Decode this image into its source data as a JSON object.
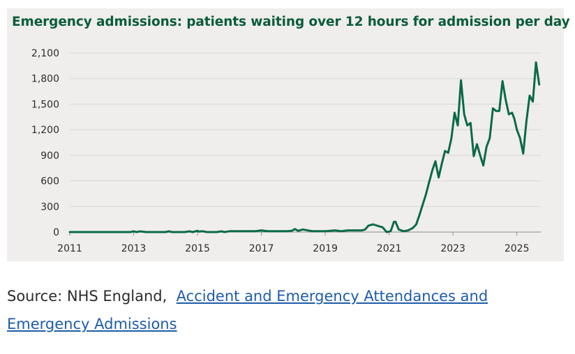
{
  "chart_data": {
    "type": "line",
    "title": "Emergency admissions: patients waiting over 12 hours for admission per day",
    "xlabel": "",
    "ylabel": "",
    "xlim": [
      2011,
      2025.75
    ],
    "ylim": [
      0,
      2100
    ],
    "yticks": [
      0,
      300,
      600,
      900,
      1200,
      1500,
      1800,
      2100
    ],
    "ytick_labels": [
      "0",
      "300",
      "600",
      "900",
      "1,200",
      "1,500",
      "1,800",
      "2,100"
    ],
    "xticks": [
      2011,
      2013,
      2015,
      2017,
      2019,
      2021,
      2023,
      2025
    ],
    "xtick_labels": [
      "2011",
      "2013",
      "2015",
      "2017",
      "2019",
      "2021",
      "2023",
      "2025"
    ],
    "grid": "horizontal",
    "line_color": "#0a6a45",
    "series": [
      {
        "x": [
          2011,
          2012,
          2012.9,
          2013.0,
          2013.1,
          2013.2,
          2013.4,
          2014.0,
          2014.1,
          2014.2,
          2014.6,
          2014.75,
          2014.85,
          2015.0,
          2015.05,
          2015.15,
          2015.3,
          2015.45,
          2015.6,
          2015.75,
          2015.85,
          2016.0,
          2016.5,
          2016.8,
          2016.9,
          2017.0,
          2017.2,
          2017.5,
          2017.8,
          2017.95,
          2018.05,
          2018.15,
          2018.3,
          2018.6,
          2018.9,
          2019.0,
          2019.15,
          2019.3,
          2019.5,
          2019.7,
          2019.85,
          2019.95,
          2020.05,
          2020.15,
          2020.25,
          2020.35,
          2020.5,
          2020.8,
          2020.92,
          2021.05,
          2021.15,
          2021.2,
          2021.3,
          2021.45,
          2021.6,
          2021.75,
          2021.85,
          2021.95,
          2022.05,
          2022.15,
          2022.25,
          2022.35,
          2022.45,
          2022.55,
          2022.65,
          2022.75,
          2022.85,
          2022.95,
          2023.05,
          2023.15,
          2023.25,
          2023.35,
          2023.45,
          2023.55,
          2023.65,
          2023.75,
          2023.85,
          2023.95,
          2024.05,
          2024.15,
          2024.25,
          2024.35,
          2024.45,
          2024.55,
          2024.65,
          2024.75,
          2024.85,
          2024.92,
          2025.0,
          2025.1,
          2025.2,
          2025.3,
          2025.4,
          2025.5,
          2025.6,
          2025.7
        ],
        "y": [
          0,
          0,
          0,
          8,
          0,
          8,
          0,
          0,
          8,
          0,
          0,
          8,
          0,
          15,
          5,
          10,
          0,
          0,
          0,
          8,
          0,
          10,
          10,
          10,
          15,
          20,
          10,
          10,
          10,
          15,
          35,
          15,
          30,
          10,
          10,
          10,
          15,
          20,
          10,
          20,
          20,
          20,
          20,
          20,
          30,
          75,
          90,
          55,
          0,
          10,
          120,
          120,
          30,
          10,
          20,
          50,
          90,
          200,
          320,
          440,
          580,
          720,
          830,
          640,
          800,
          950,
          930,
          1100,
          1400,
          1250,
          1780,
          1380,
          1250,
          1280,
          890,
          1030,
          900,
          780,
          1000,
          1100,
          1450,
          1420,
          1420,
          1770,
          1550,
          1380,
          1400,
          1330,
          1200,
          1100,
          920,
          1300,
          1600,
          1530,
          1990,
          1730
        ]
      }
    ]
  },
  "source": {
    "prefix": "Source: NHS England,",
    "link_text": "Accident and Emergency Attendances and Emergency Admissions"
  }
}
